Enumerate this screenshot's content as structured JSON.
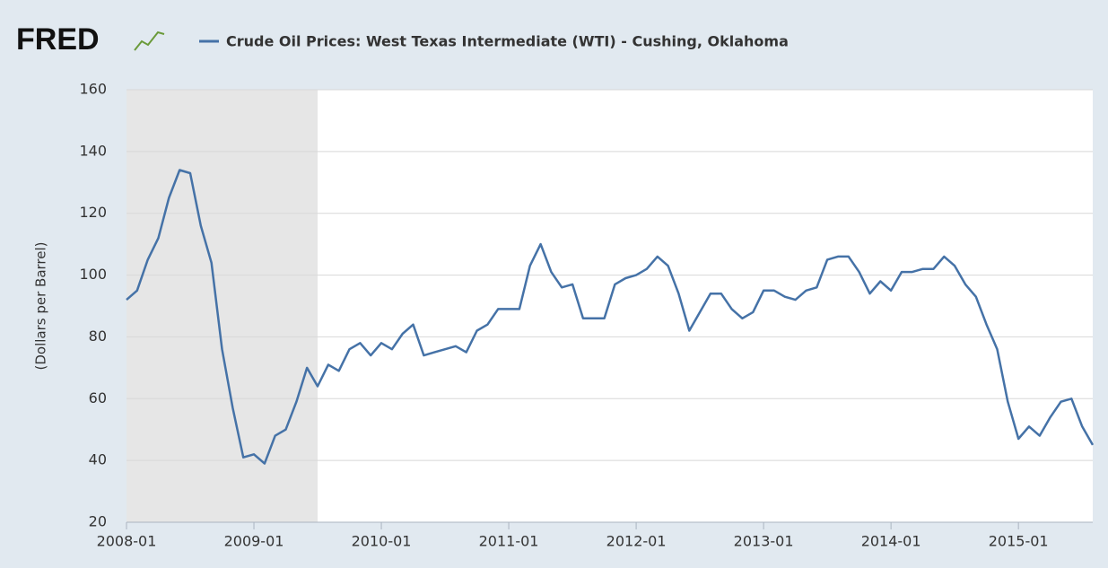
{
  "brand": "FRED",
  "chart_data": {
    "type": "line",
    "title": "Crude Oil Prices: West Texas Intermediate (WTI) - Cushing, Oklahoma",
    "y_label": "(Dollars per Barrel)",
    "x": [
      "2008-01",
      "2008-02",
      "2008-03",
      "2008-04",
      "2008-05",
      "2008-06",
      "2008-07",
      "2008-08",
      "2008-09",
      "2008-10",
      "2008-11",
      "2008-12",
      "2009-01",
      "2009-02",
      "2009-03",
      "2009-04",
      "2009-05",
      "2009-06",
      "2009-07",
      "2009-08",
      "2009-09",
      "2009-10",
      "2009-11",
      "2009-12",
      "2010-01",
      "2010-02",
      "2010-03",
      "2010-04",
      "2010-05",
      "2010-06",
      "2010-07",
      "2010-08",
      "2010-09",
      "2010-10",
      "2010-11",
      "2010-12",
      "2011-01",
      "2011-02",
      "2011-03",
      "2011-04",
      "2011-05",
      "2011-06",
      "2011-07",
      "2011-08",
      "2011-09",
      "2011-10",
      "2011-11",
      "2011-12",
      "2012-01",
      "2012-02",
      "2012-03",
      "2012-04",
      "2012-05",
      "2012-06",
      "2012-07",
      "2012-08",
      "2012-09",
      "2012-10",
      "2012-11",
      "2012-12",
      "2013-01",
      "2013-02",
      "2013-03",
      "2013-04",
      "2013-05",
      "2013-06",
      "2013-07",
      "2013-08",
      "2013-09",
      "2013-10",
      "2013-11",
      "2013-12",
      "2014-01",
      "2014-02",
      "2014-03",
      "2014-04",
      "2014-05",
      "2014-06",
      "2014-07",
      "2014-08",
      "2014-09",
      "2014-10",
      "2014-11",
      "2014-12",
      "2015-01",
      "2015-02",
      "2015-03",
      "2015-04",
      "2015-05",
      "2015-06",
      "2015-07",
      "2015-08"
    ],
    "series": [
      {
        "name": "Crude Oil Prices: West Texas Intermediate (WTI) - Cushing, Oklahoma",
        "color": "#4572a7",
        "values": [
          92,
          95,
          105,
          112,
          125,
          134,
          133,
          116,
          104,
          76,
          57,
          41,
          42,
          39,
          48,
          50,
          59,
          70,
          64,
          71,
          69,
          76,
          78,
          74,
          78,
          76,
          81,
          84,
          74,
          75,
          76,
          77,
          75,
          82,
          84,
          89,
          89,
          89,
          103,
          110,
          101,
          96,
          97,
          86,
          86,
          86,
          97,
          99,
          100,
          102,
          106,
          103,
          94,
          82,
          88,
          94,
          94,
          89,
          86,
          88,
          95,
          95,
          93,
          92,
          95,
          96,
          105,
          106,
          106,
          101,
          94,
          98,
          95,
          101,
          101,
          102,
          102,
          106,
          103,
          97,
          93,
          84,
          76,
          59,
          47,
          51,
          48,
          54,
          59,
          60,
          51,
          45
        ]
      }
    ],
    "recession": {
      "start": "2008-01",
      "end": "2009-06"
    },
    "xlim": [
      "2008-01",
      "2015-08"
    ],
    "xticks": [
      "2008-01",
      "2009-01",
      "2010-01",
      "2011-01",
      "2012-01",
      "2013-01",
      "2014-01",
      "2015-01"
    ],
    "ylim": [
      20,
      160
    ],
    "yticks": [
      20,
      40,
      60,
      80,
      100,
      120,
      140,
      160
    ],
    "grid": true
  }
}
